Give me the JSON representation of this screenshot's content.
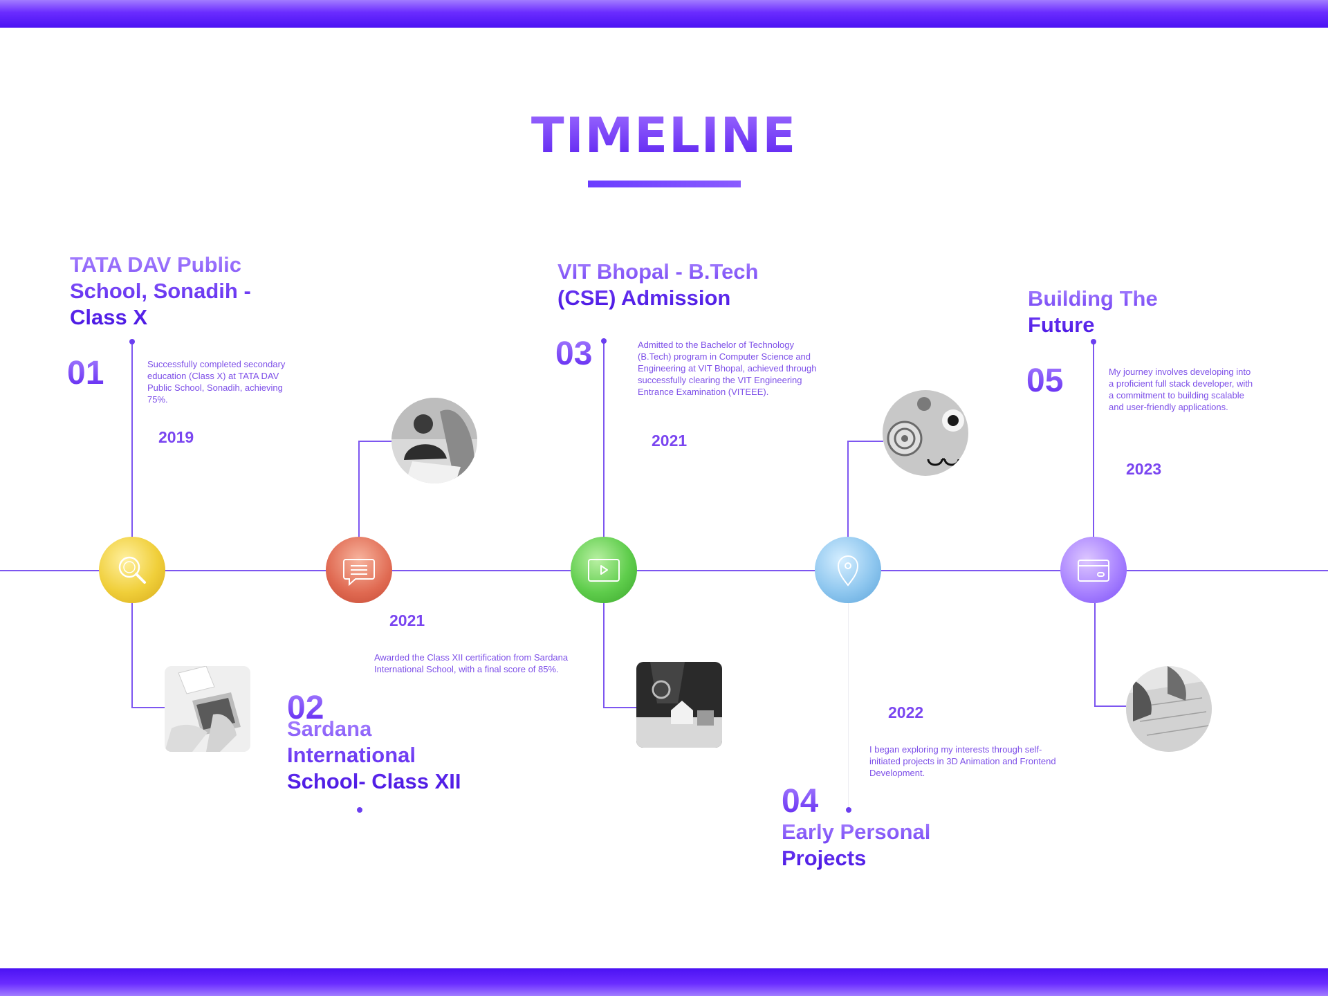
{
  "title": "TIMELINE",
  "entries": [
    {
      "number": "01",
      "heading": "TATA DAV Public School, Sonadih - Class X",
      "year": "2019",
      "description": "Successfully completed secondary education (Class X) at TATA DAV Public School, Sonadih, achieving 75%.",
      "icon": "search-icon",
      "color": "#f0cf3a"
    },
    {
      "number": "02",
      "heading": "Sardana International School- Class XII",
      "year": "2021",
      "description": "Awarded the Class XII certification from Sardana International School, with a final score of 85%.",
      "icon": "chat-icon",
      "color": "#e06a52"
    },
    {
      "number": "03",
      "heading": "VIT Bhopal - B.Tech (CSE) Admission",
      "year": "2021",
      "description": "Admitted to the Bachelor of Technology (B.Tech) program in Computer Science and Engineering at VIT Bhopal, achieved through successfully clearing the VIT Engineering Entrance Examination (VITEEE).",
      "icon": "play-icon",
      "color": "#5fcd4c"
    },
    {
      "number": "04",
      "heading": "Early Personal Projects",
      "year": "2022",
      "description": "I began exploring my interests through self-initiated projects in 3D Animation and Frontend Development.",
      "icon": "location-pin-icon",
      "color": "#8fc7ef"
    },
    {
      "number": "05",
      "heading": "Building The Future",
      "year": "2023",
      "description": "My journey involves developing into a proficient full stack developer, with a commitment to building scalable and user-friendly applications.",
      "icon": "credit-card-icon",
      "color": "#a882ff"
    }
  ],
  "accent_color": "#6b3ef0"
}
